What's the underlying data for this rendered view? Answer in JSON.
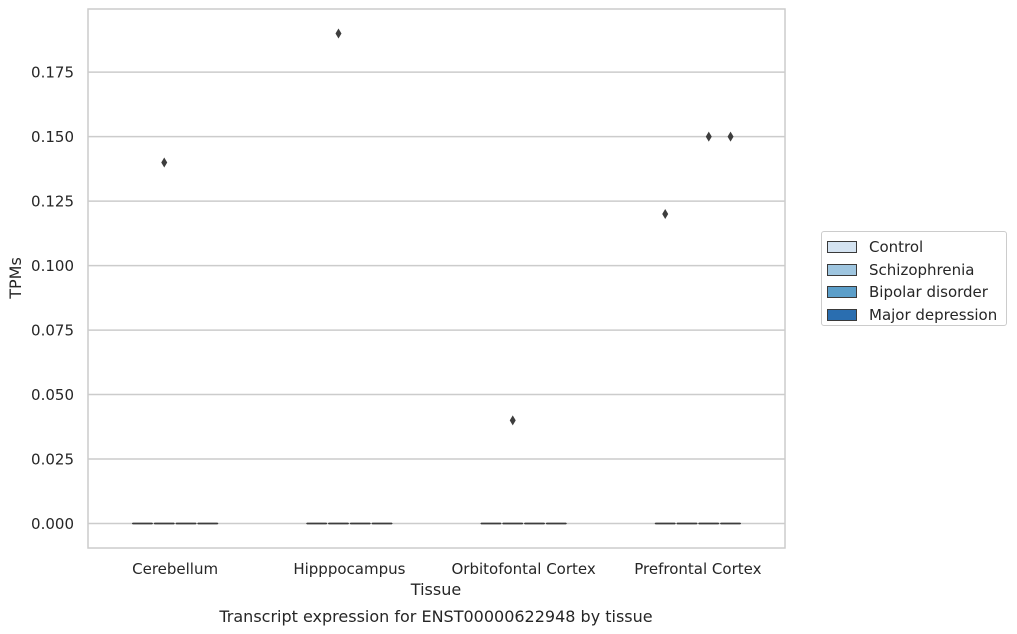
{
  "chart_data": {
    "type": "box",
    "title": "Transcript expression for ENST00000622948 by tissue",
    "xlabel": "Tissue",
    "ylabel": "TPMs",
    "ylim": [
      -0.0095,
      0.1995
    ],
    "yticks": [
      "0.000",
      "0.025",
      "0.050",
      "0.075",
      "0.100",
      "0.125",
      "0.150",
      "0.175"
    ],
    "ytick_values": [
      0,
      0.025,
      0.05,
      0.075,
      0.1,
      0.125,
      0.15,
      0.175
    ],
    "categories": [
      "Cerebellum",
      "Hipppocampus",
      "Orbitofontal Cortex",
      "Prefrontal Cortex"
    ],
    "grid": "horizontal",
    "legend_position": "right",
    "series": [
      {
        "name": "Control",
        "color": "#d4e3f1",
        "boxes": [
          {
            "min": 0,
            "q1": 0,
            "median": 0,
            "q3": 0,
            "max": 0
          },
          {
            "min": 0,
            "q1": 0,
            "median": 0,
            "q3": 0,
            "max": 0
          },
          {
            "min": 0,
            "q1": 0,
            "median": 0,
            "q3": 0,
            "max": 0
          },
          {
            "min": 0,
            "q1": 0,
            "median": 0,
            "q3": 0,
            "max": 0
          }
        ],
        "outliers": [
          [],
          [],
          [],
          [
            0.12
          ]
        ]
      },
      {
        "name": "Schizophrenia",
        "color": "#9ec5df",
        "boxes": [
          {
            "min": 0,
            "q1": 0,
            "median": 0,
            "q3": 0,
            "max": 0
          },
          {
            "min": 0,
            "q1": 0,
            "median": 0,
            "q3": 0,
            "max": 0
          },
          {
            "min": 0,
            "q1": 0,
            "median": 0,
            "q3": 0,
            "max": 0
          },
          {
            "min": 0,
            "q1": 0,
            "median": 0,
            "q3": 0,
            "max": 0
          }
        ],
        "outliers": [
          [
            0.14
          ],
          [
            0.19
          ],
          [
            0.04
          ],
          []
        ]
      },
      {
        "name": "Bipolar disorder",
        "color": "#5b9ec9",
        "boxes": [
          {
            "min": 0,
            "q1": 0,
            "median": 0,
            "q3": 0,
            "max": 0
          },
          {
            "min": 0,
            "q1": 0,
            "median": 0,
            "q3": 0,
            "max": 0
          },
          {
            "min": 0,
            "q1": 0,
            "median": 0,
            "q3": 0,
            "max": 0
          },
          {
            "min": 0,
            "q1": 0,
            "median": 0,
            "q3": 0,
            "max": 0
          }
        ],
        "outliers": [
          [],
          [],
          [],
          [
            0.15
          ]
        ]
      },
      {
        "name": "Major depression",
        "color": "#2a6eb0",
        "boxes": [
          {
            "min": 0,
            "q1": 0,
            "median": 0,
            "q3": 0,
            "max": 0
          },
          {
            "min": 0,
            "q1": 0,
            "median": 0,
            "q3": 0,
            "max": 0
          },
          {
            "min": 0,
            "q1": 0,
            "median": 0,
            "q3": 0,
            "max": 0
          },
          {
            "min": 0,
            "q1": 0,
            "median": 0,
            "q3": 0,
            "max": 0
          }
        ],
        "outliers": [
          [],
          [],
          [],
          [
            0.15
          ]
        ]
      }
    ]
  }
}
